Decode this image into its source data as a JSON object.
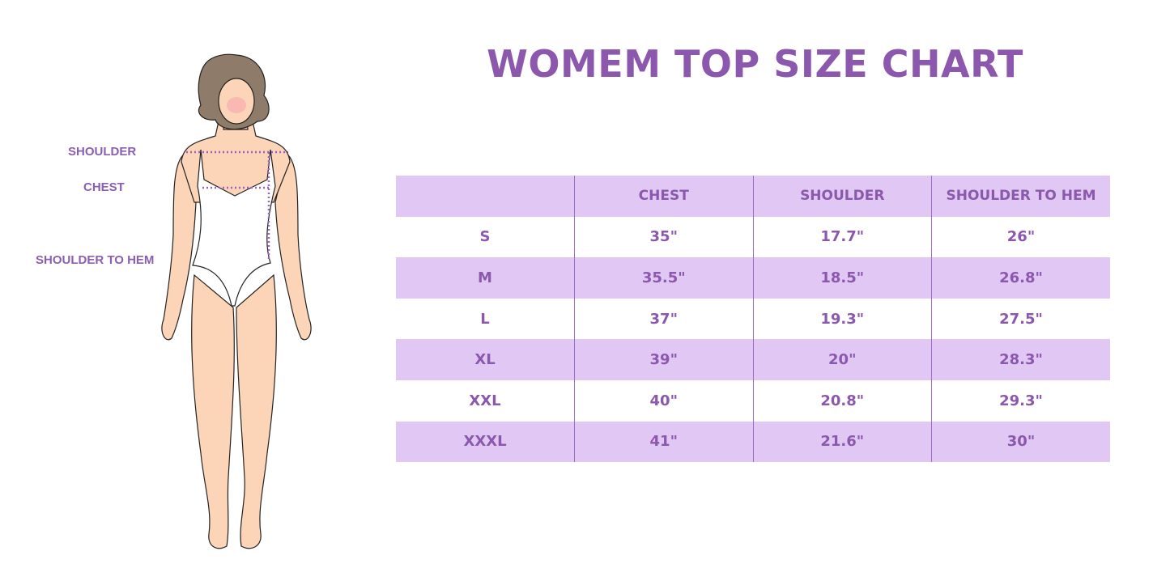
{
  "title": "WOMEM TOP SIZE CHART",
  "measure_labels": {
    "shoulder": "SHOULDER",
    "chest": "CHEST",
    "shoulder_to_hem": "SHOULDER TO HEM"
  },
  "colors": {
    "accent": "#8b58ad",
    "row_shade": "#e1c7f3",
    "divider": "#9b6cc4"
  },
  "table": {
    "headers": [
      "",
      "CHEST",
      "SHOULDER",
      "SHOULDER TO HEM"
    ],
    "rows": [
      [
        "S",
        "35\"",
        "17.7\"",
        "26\""
      ],
      [
        "M",
        "35.5\"",
        "18.5\"",
        "26.8\""
      ],
      [
        "L",
        "37\"",
        "19.3\"",
        "27.5\""
      ],
      [
        "XL",
        "39\"",
        "20\"",
        "28.3\""
      ],
      [
        "XXL",
        "40\"",
        "20.8\"",
        "29.3\""
      ],
      [
        "XXXL",
        "41\"",
        "21.6\"",
        "30\""
      ]
    ]
  },
  "chart_data": {
    "type": "table",
    "title": "WOMEM TOP SIZE CHART",
    "columns": [
      "",
      "CHEST",
      "SHOULDER",
      "SHOULDER TO HEM"
    ],
    "rows": [
      [
        "S",
        "35\"",
        "17.7\"",
        "26\""
      ],
      [
        "M",
        "35.5\"",
        "18.5\"",
        "26.8\""
      ],
      [
        "L",
        "37\"",
        "19.3\"",
        "27.5\""
      ],
      [
        "XL",
        "39\"",
        "20\"",
        "28.3\""
      ],
      [
        "XXL",
        "40\"",
        "20.8\"",
        "29.3\""
      ],
      [
        "XXXL",
        "41\"",
        "21.6\"",
        "30\""
      ]
    ]
  }
}
